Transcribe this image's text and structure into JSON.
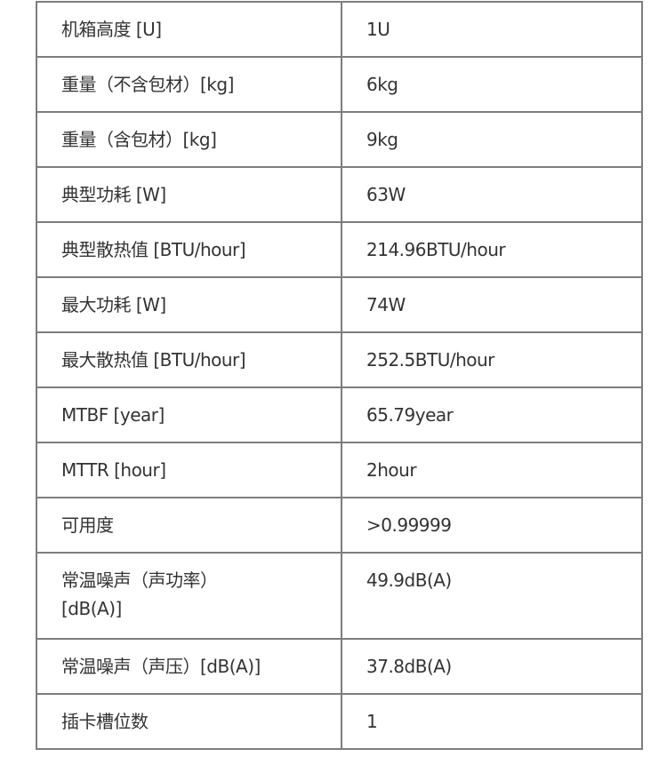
{
  "rows": [
    {
      "label": "机箱高度 [U]",
      "value": "1U"
    },
    {
      "label": "重量（不含包材）[kg]",
      "value": "6kg"
    },
    {
      "label": "重量（含包材）[kg]",
      "value": "9kg"
    },
    {
      "label": "典型功耗 [W]",
      "value": "63W"
    },
    {
      "label": "典型散热值 [BTU/hour]",
      "value": "214.96BTU/hour"
    },
    {
      "label": "最大功耗 [W]",
      "value": "74W"
    },
    {
      "label": "最大散热值 [BTU/hour]",
      "value": "252.5BTU/hour"
    },
    {
      "label": "MTBF [year]",
      "value": "65.79year"
    },
    {
      "label": "MTTR [hour]",
      "value": "2hour"
    },
    {
      "label": "可用度",
      "value": ">0.99999"
    },
    {
      "label": "常温噪声（声功率）[dB(A)]",
      "value": "49.9dB(A)"
    },
    {
      "label": "常温噪声（声压）[dB(A)]",
      "value": "37.8dB(A)"
    },
    {
      "label": "插卡槽位数",
      "value": "1"
    }
  ]
}
